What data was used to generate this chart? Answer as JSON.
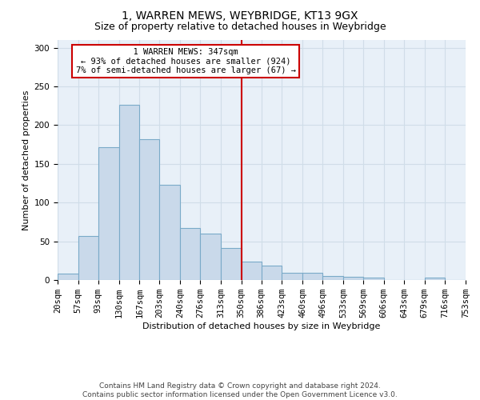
{
  "title1": "1, WARREN MEWS, WEYBRIDGE, KT13 9GX",
  "title2": "Size of property relative to detached houses in Weybridge",
  "xlabel": "Distribution of detached houses by size in Weybridge",
  "ylabel": "Number of detached properties",
  "annotation_line1": "1 WARREN MEWS: 347sqm",
  "annotation_line2": "← 93% of detached houses are smaller (924)",
  "annotation_line3": "7% of semi-detached houses are larger (67) →",
  "bin_edges": [
    20,
    57,
    93,
    130,
    167,
    203,
    240,
    276,
    313,
    350,
    386,
    423,
    460,
    496,
    533,
    569,
    606,
    643,
    679,
    716,
    753
  ],
  "bar_heights": [
    8,
    57,
    172,
    226,
    182,
    123,
    67,
    60,
    41,
    24,
    19,
    9,
    9,
    5,
    4,
    3,
    0,
    0,
    3,
    0
  ],
  "bar_color": "#c9d9ea",
  "bar_edge_color": "#7aaac8",
  "vline_color": "#cc0000",
  "vline_x": 350,
  "annotation_box_edge_color": "#cc0000",
  "annotation_fill": "#ffffff",
  "grid_color": "#d0dde8",
  "plot_bg_color": "#e8f0f8",
  "fig_bg_color": "#ffffff",
  "footer_line1": "Contains HM Land Registry data © Crown copyright and database right 2024.",
  "footer_line2": "Contains public sector information licensed under the Open Government Licence v3.0.",
  "ylim": [
    0,
    310
  ],
  "yticks": [
    0,
    50,
    100,
    150,
    200,
    250,
    300
  ],
  "title1_fontsize": 10,
  "title2_fontsize": 9,
  "xlabel_fontsize": 8,
  "ylabel_fontsize": 8,
  "tick_fontsize": 7.5,
  "footer_fontsize": 6.5,
  "ann_fontsize": 7.5
}
